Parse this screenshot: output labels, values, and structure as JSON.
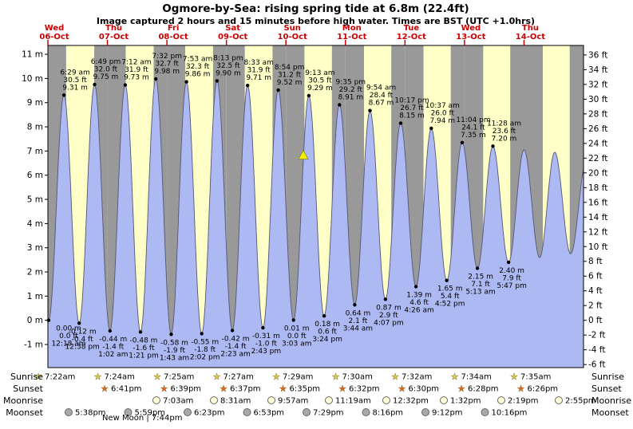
{
  "row_labels": {
    "sunrise": "Sunrise",
    "sunset": "Sunset",
    "moonrise": "Moonrise",
    "moonset": "Moonset"
  },
  "new_moon": "New Moon | 7:44pm",
  "colors": {
    "day": "#ffffc8",
    "night": "#999999",
    "fill": "#adb9f2",
    "stroke": "#555577",
    "red": "#cc0000",
    "marker": "#f2ee00"
  },
  "chart_data": {
    "type": "area",
    "title": "Ogmore-by-Sea: rising  spring tide at 6.8m (22.4ft)",
    "subtitle": "Image captured 2 hours and 15 minutes before high water. Times are BST (UTC +1.0hrs)",
    "days": [
      {
        "name": "Wed",
        "date": "06-Oct"
      },
      {
        "name": "Thu",
        "date": "07-Oct"
      },
      {
        "name": "Fri",
        "date": "08-Oct"
      },
      {
        "name": "Sat",
        "date": "09-Oct"
      },
      {
        "name": "Sun",
        "date": "10-Oct"
      },
      {
        "name": "Mon",
        "date": "11-Oct"
      },
      {
        "name": "Tue",
        "date": "12-Oct"
      },
      {
        "name": "Wed",
        "date": "13-Oct"
      },
      {
        "name": "Thu",
        "date": "14-Oct"
      }
    ],
    "y_left": {
      "unit": "m",
      "max": 11,
      "min": -1,
      "step": 1
    },
    "y_right": {
      "unit": "ft",
      "max": 36,
      "min": -6,
      "step": 2
    },
    "tide_events": [
      {
        "type": "L",
        "t": 0.3,
        "m": "0.00",
        "ft": "0.0",
        "time": "12:18 am"
      },
      {
        "type": "H",
        "t": 6.48,
        "m": "9.31",
        "ft": "30.5",
        "time": "6:29 am"
      },
      {
        "type": "L",
        "t": 12.63,
        "m": "-0.12",
        "ft": "-0.4",
        "time": "12:38 pm"
      },
      {
        "type": "H",
        "t": 18.82,
        "m": "9.75",
        "ft": "32.0",
        "time": "6:49 pm"
      },
      {
        "type": "L",
        "t": 25.03,
        "m": "-0.44",
        "ft": "-1.4",
        "time": "1:02 am"
      },
      {
        "type": "H",
        "t": 31.2,
        "m": "9.73",
        "ft": "31.9",
        "time": "7:12 am"
      },
      {
        "type": "L",
        "t": 37.35,
        "m": "-0.48",
        "ft": "-1.6",
        "time": "1:21 pm"
      },
      {
        "type": "H",
        "t": 43.53,
        "m": "9.98",
        "ft": "32.7",
        "time": "7:32 pm"
      },
      {
        "type": "L",
        "t": 49.72,
        "m": "-0.58",
        "ft": "-1.9",
        "time": "1:43 am"
      },
      {
        "type": "H",
        "t": 55.88,
        "m": "9.86",
        "ft": "32.3",
        "time": "7:53 am"
      },
      {
        "type": "L",
        "t": 62.03,
        "m": "-0.55",
        "ft": "-1.8",
        "time": "2:02 pm"
      },
      {
        "type": "H",
        "t": 68.22,
        "m": "9.90",
        "ft": "32.5",
        "time": "8:13 pm"
      },
      {
        "type": "L",
        "t": 74.38,
        "m": "-0.42",
        "ft": "-1.4",
        "time": "2:23 am"
      },
      {
        "type": "H",
        "t": 80.55,
        "m": "9.71",
        "ft": "31.9",
        "time": "8:33 am"
      },
      {
        "type": "L",
        "t": 86.72,
        "m": "-0.31",
        "ft": "-1.0",
        "time": "2:43 pm"
      },
      {
        "type": "H",
        "t": 92.9,
        "m": "9.52",
        "ft": "31.2",
        "time": "8:54 pm"
      },
      {
        "type": "L",
        "t": 99.05,
        "m": "0.01",
        "ft": "0.0",
        "time": "3:03 am"
      },
      {
        "type": "H",
        "t": 105.22,
        "m": "9.29",
        "ft": "30.5",
        "time": "9:13 am"
      },
      {
        "type": "L",
        "t": 111.4,
        "m": "0.18",
        "ft": "0.6",
        "time": "3:24 pm"
      },
      {
        "type": "H",
        "t": 117.58,
        "m": "8.91",
        "ft": "29.2",
        "time": "9:35 pm"
      },
      {
        "type": "L",
        "t": 123.73,
        "m": "0.64",
        "ft": "2.1",
        "time": "3:44 am"
      },
      {
        "type": "H",
        "t": 129.9,
        "m": "8.67",
        "ft": "28.4",
        "time": "9:54 am"
      },
      {
        "type": "L",
        "t": 136.12,
        "m": "0.87",
        "ft": "2.9",
        "time": "4:07 pm"
      },
      {
        "type": "H",
        "t": 142.28,
        "m": "8.15",
        "ft": "26.7",
        "time": "10:17 pm"
      },
      {
        "type": "L",
        "t": 148.43,
        "m": "1.39",
        "ft": "4.6",
        "time": "4:26 am"
      },
      {
        "type": "H",
        "t": 154.62,
        "m": "7.94",
        "ft": "26.0",
        "time": "10:37 am"
      },
      {
        "type": "L",
        "t": 160.87,
        "m": "1.65",
        "ft": "5.4",
        "time": "4:52 pm"
      },
      {
        "type": "H",
        "t": 167.07,
        "m": "7.35",
        "ft": "24.1",
        "time": "11:04 pm"
      },
      {
        "type": "L",
        "t": 173.22,
        "m": "2.15",
        "ft": "7.1",
        "time": "5:13 am"
      },
      {
        "type": "H",
        "t": 179.47,
        "m": "7.20",
        "ft": "23.6",
        "time": "11:28 am"
      },
      {
        "type": "L",
        "t": 185.78,
        "m": "2.40",
        "ft": "7.9",
        "time": "5:47 pm"
      }
    ],
    "curve_start": {
      "t": -5.9,
      "m": 9.2
    },
    "curve_end": [
      {
        "t": 192.0,
        "m": 7.05
      },
      {
        "t": 198.3,
        "m": 2.6
      },
      {
        "t": 204.4,
        "m": 6.95
      },
      {
        "t": 210.8,
        "m": 2.75
      },
      {
        "t": 217.2,
        "m": 6.6
      }
    ],
    "marker": {
      "t": 103.0,
      "m": 6.8,
      "note": "current level 6.8m rising, 2h15m before high water"
    },
    "sun_moon": {
      "sunrise": [
        "7:22am",
        "7:24am",
        "7:25am",
        "7:27am",
        "7:29am",
        "7:30am",
        "7:32am",
        "7:34am",
        "7:35am"
      ],
      "sunset": [
        "6:41pm",
        "6:39pm",
        "6:37pm",
        "6:35pm",
        "6:32pm",
        "6:30pm",
        "6:28pm",
        "6:26pm"
      ],
      "moonrise": [
        "7:03am",
        "8:31am",
        "9:57am",
        "11:19am",
        "12:32pm",
        "1:32pm",
        "2:19pm",
        "2:55pm"
      ],
      "moonset": [
        "5:38pm",
        "5:59pm",
        "6:23pm",
        "6:53pm",
        "7:29pm",
        "8:16pm",
        "9:12pm",
        "10:16pm"
      ]
    }
  }
}
